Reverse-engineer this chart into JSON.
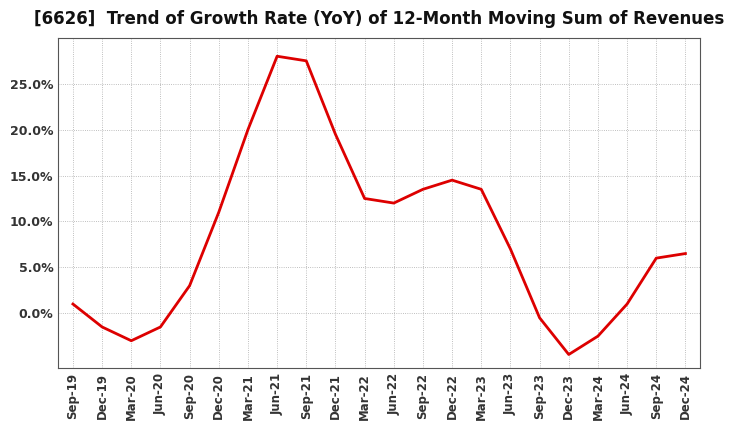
{
  "title": "[6626]  Trend of Growth Rate (YoY) of 12-Month Moving Sum of Revenues",
  "title_fontsize": 12,
  "line_color": "#dd0000",
  "background_color": "#ffffff",
  "grid_color": "#aaaaaa",
  "x_labels": [
    "Sep-19",
    "Dec-19",
    "Mar-20",
    "Jun-20",
    "Sep-20",
    "Dec-20",
    "Mar-21",
    "Jun-21",
    "Sep-21",
    "Dec-21",
    "Mar-22",
    "Jun-22",
    "Sep-22",
    "Dec-22",
    "Mar-23",
    "Jun-23",
    "Sep-23",
    "Dec-23",
    "Mar-24",
    "Jun-24",
    "Sep-24",
    "Dec-24"
  ],
  "y_values": [
    1.0,
    -1.5,
    -3.0,
    -1.5,
    3.0,
    11.0,
    20.0,
    28.0,
    27.5,
    19.5,
    12.5,
    12.0,
    13.5,
    14.5,
    13.5,
    7.0,
    -0.5,
    -4.5,
    -2.5,
    1.0,
    6.0,
    6.5
  ],
  "ylim": [
    -6,
    30
  ],
  "yticks": [
    0.0,
    5.0,
    10.0,
    15.0,
    20.0,
    25.0
  ],
  "ytick_labels": [
    "0.0%",
    "5.0%",
    "10.0%",
    "15.0%",
    "20.0%",
    "25.0%"
  ],
  "figsize": [
    7.2,
    4.4
  ],
  "dpi": 100
}
